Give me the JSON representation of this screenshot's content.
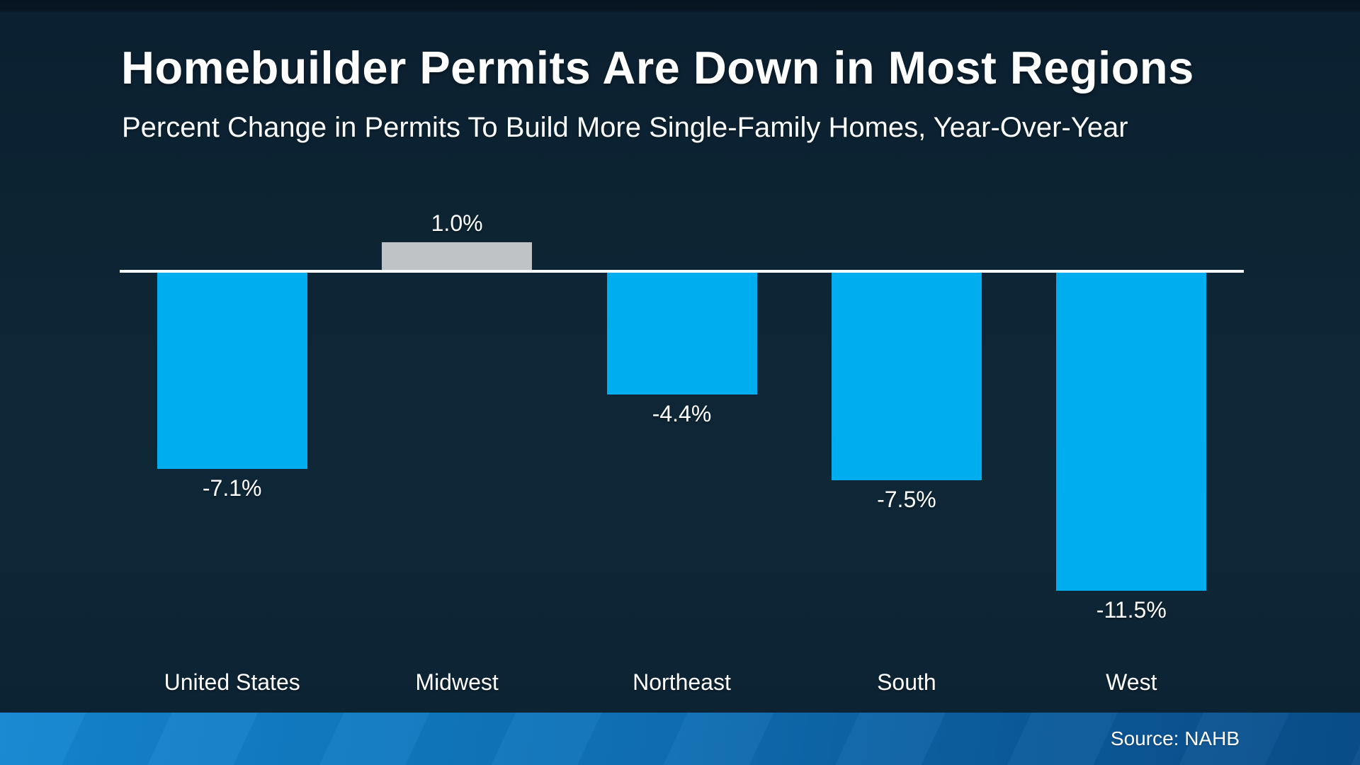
{
  "slide": {
    "title": "Homebuilder Permits Are Down in Most Regions",
    "subtitle": "Percent Change in Permits To Build More Single-Family Homes, Year-Over-Year",
    "source_label": "Source: NAHB"
  },
  "colors": {
    "background": "#0d2433",
    "bar_blue": "#00AEEF",
    "bar_gray": "#BFC3C5",
    "axis_line": "#F7F9FA",
    "footer_left": "#1486D1",
    "footer_right": "#094E8A",
    "text": "#FFFFFF"
  },
  "chart_data": {
    "type": "bar",
    "title": "Homebuilder Permits Are Down in Most Regions",
    "subtitle": "Percent Change in Permits To Build More Single-Family Homes, Year-Over-Year",
    "categories": [
      "United States",
      "Midwest",
      "Northeast",
      "South",
      "West"
    ],
    "values": [
      -7.1,
      1.0,
      -4.4,
      -7.5,
      -11.5
    ],
    "value_labels": [
      "-7.1%",
      "1.0%",
      "-4.4%",
      "-7.5%",
      "-11.5%"
    ],
    "bar_colors": [
      "#00AEEF",
      "#BFC3C5",
      "#00AEEF",
      "#00AEEF",
      "#00AEEF"
    ],
    "unit": "%",
    "baseline": 0,
    "ylim": [
      -12,
      1.5
    ],
    "grid": false,
    "legend": false,
    "source": "Source: NAHB"
  }
}
